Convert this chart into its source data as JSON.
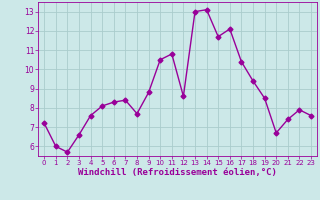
{
  "x": [
    0,
    1,
    2,
    3,
    4,
    5,
    6,
    7,
    8,
    9,
    10,
    11,
    12,
    13,
    14,
    15,
    16,
    17,
    18,
    19,
    20,
    21,
    22,
    23
  ],
  "y": [
    7.2,
    6.0,
    5.7,
    6.6,
    7.6,
    8.1,
    8.3,
    8.4,
    7.7,
    8.8,
    10.5,
    10.8,
    8.6,
    13.0,
    13.1,
    11.7,
    12.1,
    10.4,
    9.4,
    8.5,
    6.7,
    7.4,
    7.9,
    7.6
  ],
  "line_color": "#990099",
  "marker": "D",
  "marker_size": 2.5,
  "linewidth": 1.0,
  "xlabel": "Windchill (Refroidissement éolien,°C)",
  "xlabel_fontsize": 6.5,
  "bg_color": "#cce8e8",
  "grid_color": "#aacccc",
  "tick_color": "#990099",
  "label_color": "#990099",
  "ylim": [
    5.5,
    13.5
  ],
  "yticks": [
    6,
    7,
    8,
    9,
    10,
    11,
    12,
    13
  ],
  "xlim": [
    -0.5,
    23.5
  ],
  "xticks": [
    0,
    1,
    2,
    3,
    4,
    5,
    6,
    7,
    8,
    9,
    10,
    11,
    12,
    13,
    14,
    15,
    16,
    17,
    18,
    19,
    20,
    21,
    22,
    23
  ]
}
